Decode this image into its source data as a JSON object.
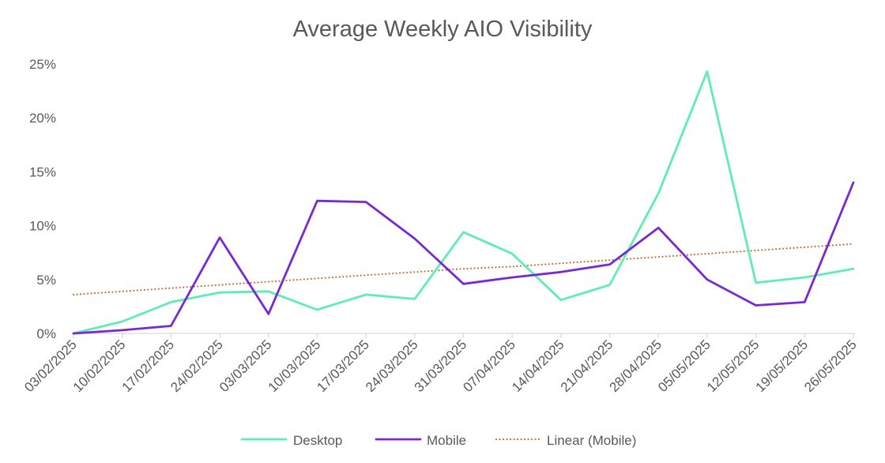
{
  "chart_data": {
    "type": "line",
    "title": "Average Weekly AIO Visibility",
    "xlabel": "",
    "ylabel": "",
    "x": [
      "03/02/2025",
      "10/02/2025",
      "17/02/2025",
      "24/02/2025",
      "03/03/2025",
      "10/03/2025",
      "17/03/2025",
      "24/03/2025",
      "31/03/2025",
      "07/04/2025",
      "14/04/2025",
      "21/04/2025",
      "28/04/2025",
      "05/05/2025",
      "12/05/2025",
      "19/05/2025",
      "26/05/2025"
    ],
    "y_ticks": [
      "0%",
      "5%",
      "10%",
      "15%",
      "20%",
      "25%"
    ],
    "ylim": [
      0,
      25
    ],
    "grid": false,
    "legend_position": "bottom",
    "series": [
      {
        "name": "Desktop",
        "color": "#5EEDB4",
        "style": "solid",
        "values": [
          0.0,
          1.1,
          2.9,
          3.8,
          3.9,
          2.2,
          3.6,
          3.2,
          9.4,
          7.4,
          3.1,
          4.5,
          13.0,
          24.3,
          4.7,
          5.2,
          6.0
        ]
      },
      {
        "name": "Mobile",
        "color": "#7A28CF",
        "style": "solid",
        "values": [
          0.0,
          0.3,
          0.7,
          8.9,
          1.8,
          12.3,
          12.2,
          8.8,
          4.6,
          5.2,
          5.7,
          6.4,
          9.8,
          5.0,
          2.6,
          2.9,
          14.0
        ]
      },
      {
        "name": "Linear (Mobile)",
        "color": "#C5773F",
        "style": "dotted",
        "values": [
          3.6,
          3.9,
          4.2,
          4.5,
          4.8,
          5.1,
          5.4,
          5.7,
          6.0,
          6.2,
          6.5,
          6.8,
          7.1,
          7.4,
          7.7,
          8.0,
          8.3
        ]
      }
    ]
  }
}
